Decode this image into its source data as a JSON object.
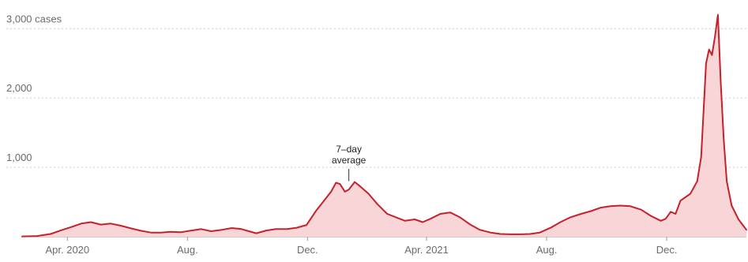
{
  "chart_data": {
    "type": "area",
    "title": "",
    "xlabel": "",
    "ylabel": "",
    "y_axis": {
      "min": 0,
      "max": 3300,
      "ticks": [
        {
          "value": 1000,
          "label": "1,000"
        },
        {
          "value": 2000,
          "label": "2,000"
        },
        {
          "value": 3000,
          "label": "3,000 cases"
        }
      ]
    },
    "x_axis": {
      "start": "2020-02-15",
      "end": "2022-02-20",
      "ticks": [
        {
          "date": "2020-04-01",
          "label": "Apr. 2020"
        },
        {
          "date": "2020-08-01",
          "label": "Aug."
        },
        {
          "date": "2020-12-01",
          "label": "Dec."
        },
        {
          "date": "2021-04-01",
          "label": "Apr. 2021"
        },
        {
          "date": "2021-08-01",
          "label": "Aug."
        },
        {
          "date": "2021-12-01",
          "label": "Dec."
        }
      ]
    },
    "grid": true,
    "annotation": {
      "text_lines": [
        "7–day",
        "average"
      ],
      "date": "2021-01-12",
      "value": 780
    },
    "series": [
      {
        "line_color": "#c8202b",
        "fill_color": "#f8d5d6",
        "points": [
          [
            "2020-02-15",
            5
          ],
          [
            "2020-03-01",
            10
          ],
          [
            "2020-03-15",
            40
          ],
          [
            "2020-03-25",
            90
          ],
          [
            "2020-04-05",
            140
          ],
          [
            "2020-04-15",
            190
          ],
          [
            "2020-04-25",
            210
          ],
          [
            "2020-05-05",
            175
          ],
          [
            "2020-05-15",
            190
          ],
          [
            "2020-05-25",
            160
          ],
          [
            "2020-06-05",
            120
          ],
          [
            "2020-06-15",
            85
          ],
          [
            "2020-06-25",
            60
          ],
          [
            "2020-07-05",
            60
          ],
          [
            "2020-07-15",
            70
          ],
          [
            "2020-07-25",
            65
          ],
          [
            "2020-08-05",
            90
          ],
          [
            "2020-08-15",
            110
          ],
          [
            "2020-08-25",
            80
          ],
          [
            "2020-09-05",
            100
          ],
          [
            "2020-09-15",
            125
          ],
          [
            "2020-09-25",
            110
          ],
          [
            "2020-10-01",
            85
          ],
          [
            "2020-10-10",
            50
          ],
          [
            "2020-10-20",
            90
          ],
          [
            "2020-10-30",
            110
          ],
          [
            "2020-11-10",
            110
          ],
          [
            "2020-11-20",
            130
          ],
          [
            "2020-11-30",
            170
          ],
          [
            "2020-12-10",
            380
          ],
          [
            "2020-12-20",
            560
          ],
          [
            "2020-12-25",
            650
          ],
          [
            "2020-12-30",
            780
          ],
          [
            "2021-01-03",
            760
          ],
          [
            "2021-01-08",
            650
          ],
          [
            "2021-01-12",
            680
          ],
          [
            "2021-01-18",
            790
          ],
          [
            "2021-01-24",
            720
          ],
          [
            "2021-02-01",
            620
          ],
          [
            "2021-02-10",
            470
          ],
          [
            "2021-02-20",
            330
          ],
          [
            "2021-03-01",
            280
          ],
          [
            "2021-03-10",
            230
          ],
          [
            "2021-03-20",
            250
          ],
          [
            "2021-03-28",
            210
          ],
          [
            "2021-04-05",
            260
          ],
          [
            "2021-04-15",
            330
          ],
          [
            "2021-04-25",
            350
          ],
          [
            "2021-05-05",
            280
          ],
          [
            "2021-05-15",
            180
          ],
          [
            "2021-05-25",
            100
          ],
          [
            "2021-06-05",
            60
          ],
          [
            "2021-06-15",
            40
          ],
          [
            "2021-06-25",
            35
          ],
          [
            "2021-07-05",
            35
          ],
          [
            "2021-07-15",
            40
          ],
          [
            "2021-07-25",
            60
          ],
          [
            "2021-08-05",
            130
          ],
          [
            "2021-08-15",
            210
          ],
          [
            "2021-08-25",
            280
          ],
          [
            "2021-09-05",
            330
          ],
          [
            "2021-09-15",
            370
          ],
          [
            "2021-09-25",
            420
          ],
          [
            "2021-10-05",
            440
          ],
          [
            "2021-10-15",
            450
          ],
          [
            "2021-10-25",
            440
          ],
          [
            "2021-11-05",
            390
          ],
          [
            "2021-11-15",
            300
          ],
          [
            "2021-11-25",
            230
          ],
          [
            "2021-11-30",
            260
          ],
          [
            "2021-12-05",
            360
          ],
          [
            "2021-12-10",
            330
          ],
          [
            "2021-12-15",
            520
          ],
          [
            "2021-12-25",
            620
          ],
          [
            "2022-01-01",
            800
          ],
          [
            "2022-01-05",
            1150
          ],
          [
            "2022-01-10",
            2500
          ],
          [
            "2022-01-13",
            2700
          ],
          [
            "2022-01-16",
            2620
          ],
          [
            "2022-01-19",
            2880
          ],
          [
            "2022-01-22",
            3200
          ],
          [
            "2022-01-25",
            2200
          ],
          [
            "2022-01-28",
            1400
          ],
          [
            "2022-01-31",
            800
          ],
          [
            "2022-02-05",
            450
          ],
          [
            "2022-02-12",
            250
          ],
          [
            "2022-02-20",
            100
          ]
        ]
      }
    ]
  }
}
